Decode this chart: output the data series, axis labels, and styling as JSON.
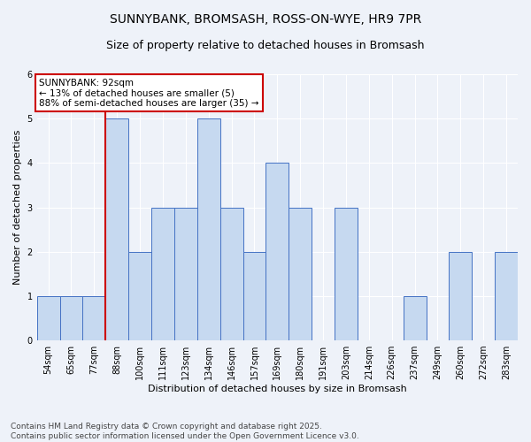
{
  "title_line1": "SUNNYBANK, BROMSASH, ROSS-ON-WYE, HR9 7PR",
  "title_line2": "Size of property relative to detached houses in Bromsash",
  "xlabel": "Distribution of detached houses by size in Bromsash",
  "ylabel": "Number of detached properties",
  "categories": [
    "54sqm",
    "65sqm",
    "77sqm",
    "88sqm",
    "100sqm",
    "111sqm",
    "123sqm",
    "134sqm",
    "146sqm",
    "157sqm",
    "169sqm",
    "180sqm",
    "191sqm",
    "203sqm",
    "214sqm",
    "226sqm",
    "237sqm",
    "249sqm",
    "260sqm",
    "272sqm",
    "283sqm"
  ],
  "values": [
    1,
    1,
    1,
    5,
    2,
    3,
    3,
    5,
    3,
    2,
    4,
    3,
    0,
    3,
    0,
    0,
    1,
    0,
    2,
    0,
    2
  ],
  "bar_color": "#c6d9f0",
  "bar_edge_color": "#4472c4",
  "highlight_line_color": "#cc0000",
  "highlight_line_index": 3,
  "annotation_text": "SUNNYBANK: 92sqm\n← 13% of detached houses are smaller (5)\n88% of semi-detached houses are larger (35) →",
  "annotation_box_color": "#ffffff",
  "annotation_box_edge_color": "#cc0000",
  "ylim": [
    0,
    6
  ],
  "yticks": [
    0,
    1,
    2,
    3,
    4,
    5,
    6
  ],
  "background_color": "#eef2f9",
  "grid_color": "#ffffff",
  "footer_text": "Contains HM Land Registry data © Crown copyright and database right 2025.\nContains public sector information licensed under the Open Government Licence v3.0.",
  "title_fontsize": 10,
  "subtitle_fontsize": 9,
  "axis_label_fontsize": 8,
  "tick_fontsize": 7,
  "annotation_fontsize": 7.5,
  "footer_fontsize": 6.5
}
